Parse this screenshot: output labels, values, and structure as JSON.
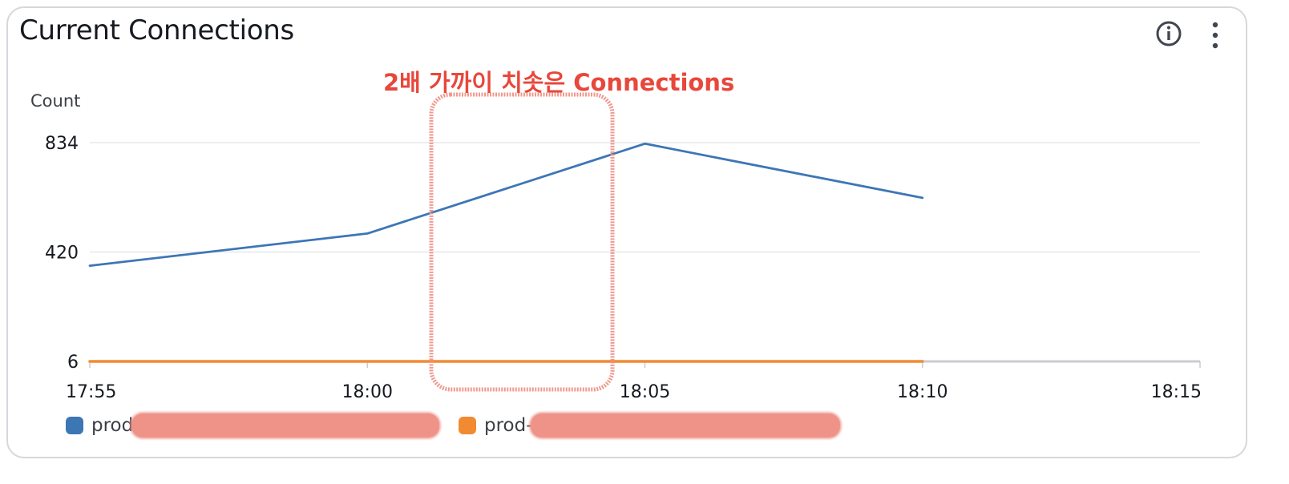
{
  "widget": {
    "title": "Current Connections",
    "info_icon": "info-circle-icon",
    "menu_icon": "vertical-dots-icon"
  },
  "annotation": {
    "text": "2배 가까이 치솟은 Connections",
    "color": "#e8473b",
    "highlight_color": "#ef9389"
  },
  "chart_data": {
    "type": "line",
    "ylabel": "Count",
    "y_ticks": [
      6,
      420,
      834
    ],
    "ylim": [
      6,
      834
    ],
    "x_ticks": [
      "17:55",
      "18:00",
      "18:05",
      "18:10",
      "18:15"
    ],
    "xlim": [
      "17:55",
      "18:15"
    ],
    "grid": true,
    "legend_position": "bottom-left",
    "series": [
      {
        "name": "prod",
        "color": "#3d76b5",
        "points": [
          {
            "x": "17:55",
            "y": 368
          },
          {
            "x": "18:00",
            "y": 490
          },
          {
            "x": "18:05",
            "y": 830
          },
          {
            "x": "18:10",
            "y": 625
          }
        ]
      },
      {
        "name": "prod-",
        "color": "#f28a31",
        "points": [
          {
            "x": "17:55",
            "y": 6
          },
          {
            "x": "18:00",
            "y": 6
          },
          {
            "x": "18:05",
            "y": 6
          },
          {
            "x": "18:10",
            "y": 6
          }
        ]
      }
    ]
  }
}
